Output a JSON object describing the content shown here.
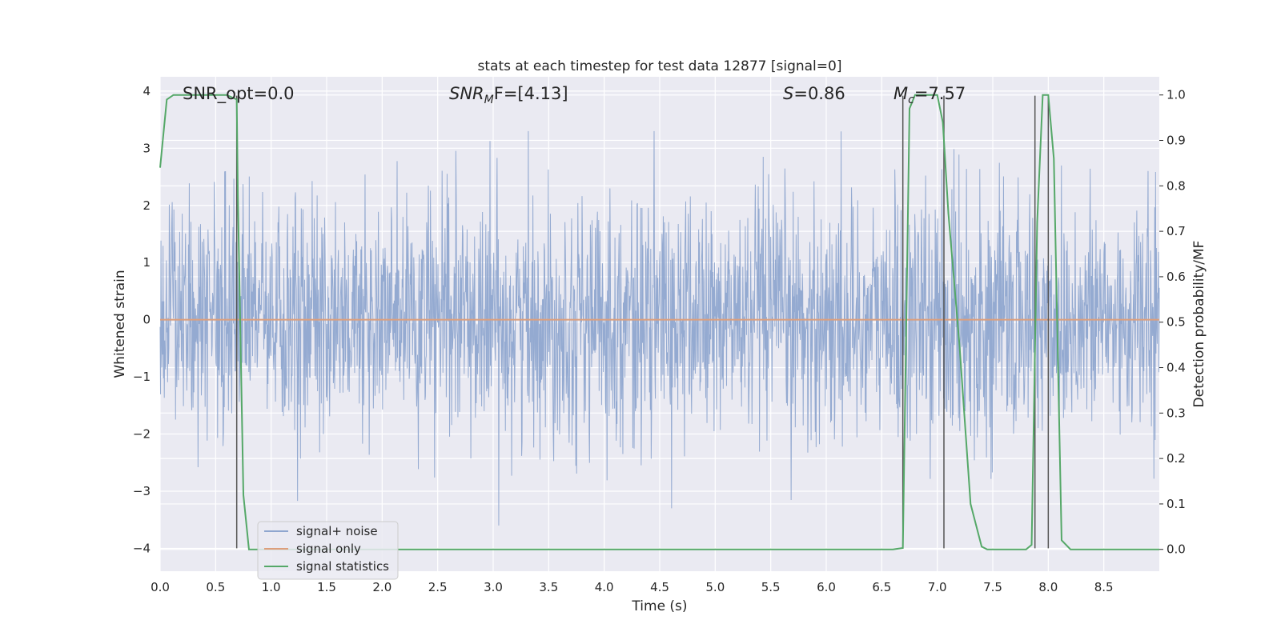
{
  "chart_data": {
    "type": "line",
    "title": "stats at each timestep for test data 12877 [signal=0]",
    "xlabel": "Time (s)",
    "ylabel": "Whitened strain",
    "ylabel_right": "Detection probability/MF",
    "xlim": [
      0.0,
      9.0
    ],
    "ylim": [
      -4.4,
      4.25
    ],
    "ylim_right": [
      -0.048,
      1.04
    ],
    "xticks": [
      "0.0",
      "0.5",
      "1.0",
      "1.5",
      "2.0",
      "2.5",
      "3.0",
      "3.5",
      "4.0",
      "4.5",
      "5.0",
      "5.5",
      "6.0",
      "6.5",
      "7.0",
      "7.5",
      "8.0",
      "8.5"
    ],
    "yticks": [
      "4",
      "3",
      "2",
      "1",
      "0",
      "−1",
      "−2",
      "−3",
      "−4"
    ],
    "yticks_right": [
      "1.0",
      "0.9",
      "0.8",
      "0.7",
      "0.6",
      "0.5",
      "0.4",
      "0.3",
      "0.2",
      "0.1",
      "0.0"
    ],
    "grid": true,
    "legend_position": "lower-left",
    "annotations": {
      "snr_opt": "SNR_opt=0.0",
      "snr_mf_main": "SNR",
      "snr_mf_sub": "M",
      "snr_mf_rest": "F=[4.13]",
      "s_var": "S",
      "s_rest": "=0.86",
      "mc_var": "M",
      "mc_sub": "c",
      "mc_rest": "=7.57"
    },
    "series": [
      {
        "name": "signal+ noise",
        "color": "#8fa6cf",
        "kind": "noise",
        "note_amplitude": "approx. between -3.6 and 3.3"
      },
      {
        "name": "signal only",
        "color": "#dd9f7c",
        "x": [
          0.0,
          9.0
        ],
        "y": [
          0.0,
          0.0
        ]
      },
      {
        "name": "signal statistics",
        "color": "#55a868",
        "axis": "right",
        "x": [
          0.0,
          0.06,
          0.12,
          0.2,
          0.5,
          0.6,
          0.69,
          0.7,
          0.75,
          0.8,
          6.6,
          6.69,
          6.75,
          6.8,
          7.0,
          7.05,
          7.1,
          7.2,
          7.3,
          7.4,
          7.45,
          7.8,
          7.85,
          7.9,
          7.95,
          8.0,
          8.05,
          8.12,
          8.2,
          9.0
        ],
        "y": [
          0.84,
          0.99,
          1.0,
          1.0,
          1.0,
          1.0,
          0.99,
          0.78,
          0.12,
          0.0,
          0.0,
          0.003,
          0.97,
          1.0,
          1.0,
          0.94,
          0.74,
          0.45,
          0.1,
          0.006,
          0.0,
          0.0,
          0.01,
          0.72,
          1.0,
          1.0,
          0.86,
          0.02,
          0.0,
          0.0
        ]
      }
    ],
    "vertical_markers": [
      {
        "x": 0.69,
        "y_top": 3.92,
        "y_bottom": -4.0
      },
      {
        "x": 6.69,
        "y_top": 3.92,
        "y_bottom": -4.0
      },
      {
        "x": 7.06,
        "y_top": 3.92,
        "y_bottom": -4.0
      },
      {
        "x": 7.88,
        "y_top": 3.92,
        "y_bottom": -4.0
      },
      {
        "x": 8.0,
        "y_top": 3.92,
        "y_bottom": -4.0
      }
    ],
    "colors": {
      "plot_background": "#eaeaf2",
      "grid": "#ffffff",
      "marker_line": "#555555",
      "text": "#262626"
    }
  }
}
